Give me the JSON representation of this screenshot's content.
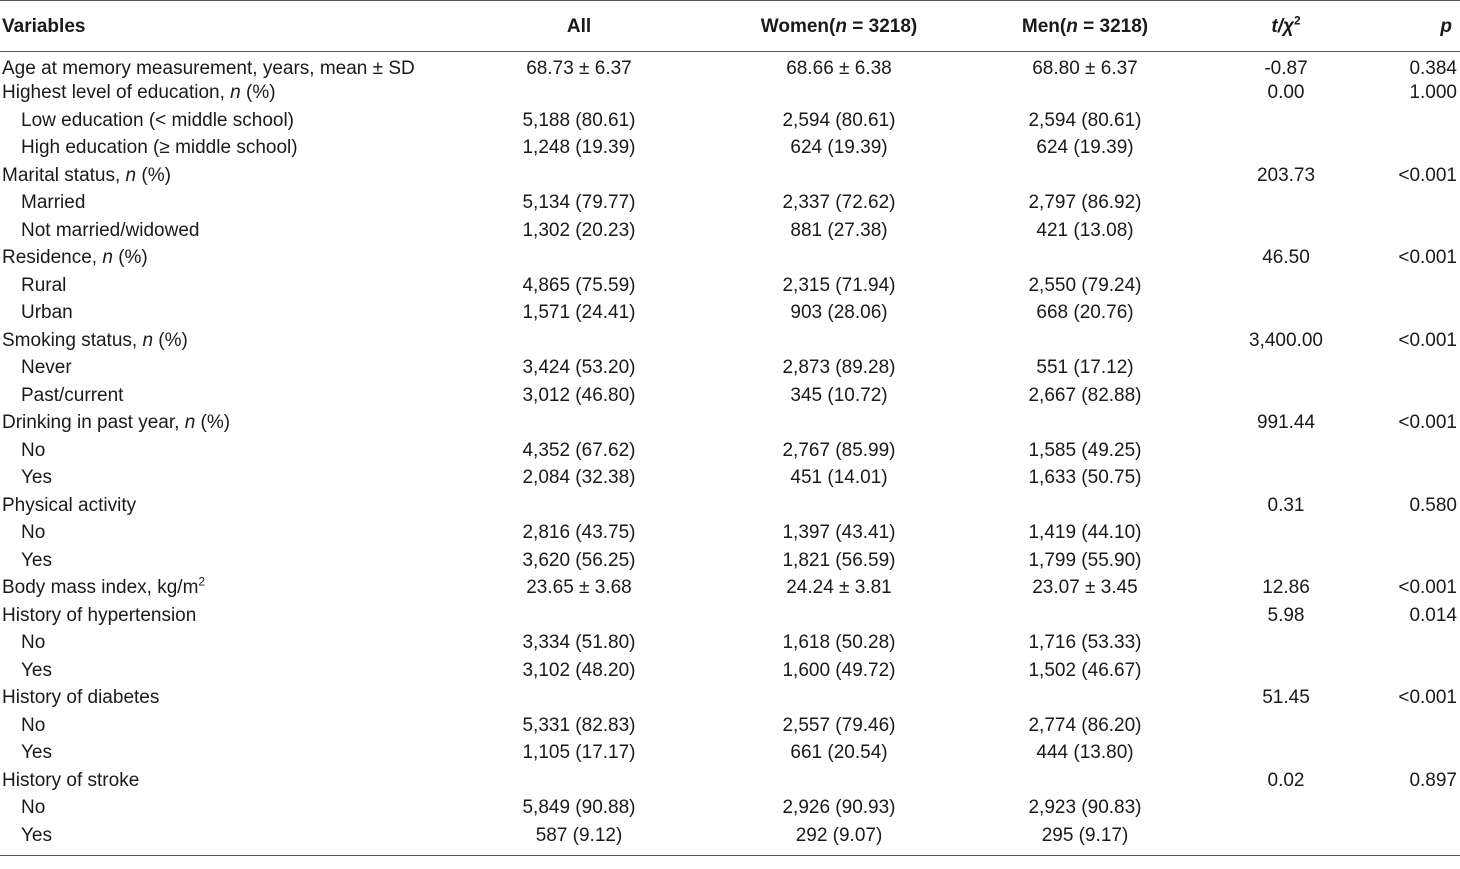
{
  "header": {
    "variables": "Variables",
    "all": "All",
    "women_label": "Women(",
    "women_n": "n",
    "women_count": " = 3218)",
    "men_label": "Men(",
    "men_n": "n",
    "men_count": " = 3218)",
    "t_label": "t",
    "chi_label": "/χ",
    "chi_sup": "2",
    "p_label": "p"
  },
  "rows": [
    {
      "type": "main",
      "label": "Age at memory measurement, years, mean ± SD",
      "all": "68.73 ± 6.37",
      "women": "68.66 ± 6.38",
      "men": "68.80 ± 6.37",
      "t": "-0.87",
      "p": "0.384"
    },
    {
      "type": "main",
      "label": "Highest level of education, ",
      "label_n": "n",
      "label_suffix": " (%)",
      "all": "",
      "women": "",
      "men": "",
      "t": "0.00",
      "p": "1.000"
    },
    {
      "type": "sub",
      "label": "Low education (< middle school)",
      "all": "5,188 (80.61)",
      "women": "2,594 (80.61)",
      "men": "2,594 (80.61)",
      "t": "",
      "p": ""
    },
    {
      "type": "sub",
      "label": "High education (≥ middle school)",
      "all": "1,248 (19.39)",
      "women": "624 (19.39)",
      "men": "624 (19.39)",
      "t": "",
      "p": ""
    },
    {
      "type": "main",
      "label": "Marital status, ",
      "label_n": "n",
      "label_suffix": " (%)",
      "all": "",
      "women": "",
      "men": "",
      "t": "203.73",
      "p": "<0.001"
    },
    {
      "type": "sub",
      "label": "Married",
      "all": "5,134 (79.77)",
      "women": "2,337 (72.62)",
      "men": "2,797 (86.92)",
      "t": "",
      "p": ""
    },
    {
      "type": "sub",
      "label": "Not married/widowed",
      "all": "1,302 (20.23)",
      "women": "881 (27.38)",
      "men": "421 (13.08)",
      "t": "",
      "p": ""
    },
    {
      "type": "main",
      "label": "Residence, ",
      "label_n": "n",
      "label_suffix": " (%)",
      "all": "",
      "women": "",
      "men": "",
      "t": "46.50",
      "p": "<0.001"
    },
    {
      "type": "sub",
      "label": "Rural",
      "all": "4,865 (75.59)",
      "women": "2,315 (71.94)",
      "men": "2,550 (79.24)",
      "t": "",
      "p": ""
    },
    {
      "type": "sub",
      "label": "Urban",
      "all": "1,571 (24.41)",
      "women": "903 (28.06)",
      "men": "668 (20.76)",
      "t": "",
      "p": ""
    },
    {
      "type": "main",
      "label": "Smoking status, ",
      "label_n": "n",
      "label_suffix": " (%)",
      "all": "",
      "women": "",
      "men": "",
      "t": "3,400.00",
      "p": "<0.001"
    },
    {
      "type": "sub",
      "label": "Never",
      "all": "3,424 (53.20)",
      "women": "2,873 (89.28)",
      "men": "551 (17.12)",
      "t": "",
      "p": ""
    },
    {
      "type": "sub",
      "label": "Past/current",
      "all": "3,012 (46.80)",
      "women": "345 (10.72)",
      "men": "2,667 (82.88)",
      "t": "",
      "p": ""
    },
    {
      "type": "main",
      "label": "Drinking in past year, ",
      "label_n": "n",
      "label_suffix": " (%)",
      "all": "",
      "women": "",
      "men": "",
      "t": "991.44",
      "p": "<0.001"
    },
    {
      "type": "sub",
      "label": "No",
      "all": "4,352 (67.62)",
      "women": "2,767 (85.99)",
      "men": "1,585 (49.25)",
      "t": "",
      "p": ""
    },
    {
      "type": "sub",
      "label": "Yes",
      "all": "2,084 (32.38)",
      "women": "451 (14.01)",
      "men": "1,633 (50.75)",
      "t": "",
      "p": ""
    },
    {
      "type": "main",
      "label": "Physical activity",
      "all": "",
      "women": "",
      "men": "",
      "t": "0.31",
      "p": "0.580"
    },
    {
      "type": "sub",
      "label": "No",
      "all": "2,816 (43.75)",
      "women": "1,397 (43.41)",
      "men": "1,419 (44.10)",
      "t": "",
      "p": ""
    },
    {
      "type": "sub",
      "label": "Yes",
      "all": "3,620 (56.25)",
      "women": "1,821 (56.59)",
      "men": "1,799 (55.90)",
      "t": "",
      "p": ""
    },
    {
      "type": "main",
      "label": "Body mass index, kg/m",
      "label_sup": "2",
      "all": "23.65 ± 3.68",
      "women": "24.24 ± 3.81",
      "men": "23.07 ± 3.45",
      "t": "12.86",
      "p": "<0.001"
    },
    {
      "type": "main",
      "label": "History of hypertension",
      "all": "",
      "women": "",
      "men": "",
      "t": "5.98",
      "p": "0.014"
    },
    {
      "type": "sub",
      "label": "No",
      "all": "3,334 (51.80)",
      "women": "1,618 (50.28)",
      "men": "1,716 (53.33)",
      "t": "",
      "p": ""
    },
    {
      "type": "sub",
      "label": "Yes",
      "all": "3,102 (48.20)",
      "women": "1,600 (49.72)",
      "men": "1,502 (46.67)",
      "t": "",
      "p": ""
    },
    {
      "type": "main",
      "label": "History of diabetes",
      "all": "",
      "women": "",
      "men": "",
      "t": "51.45",
      "p": "<0.001"
    },
    {
      "type": "sub",
      "label": "No",
      "all": "5,331 (82.83)",
      "women": "2,557 (79.46)",
      "men": "2,774 (86.20)",
      "t": "",
      "p": ""
    },
    {
      "type": "sub",
      "label": "Yes",
      "all": "1,105 (17.17)",
      "women": "661 (20.54)",
      "men": "444 (13.80)",
      "t": "",
      "p": ""
    },
    {
      "type": "main",
      "label": "History of stroke",
      "all": "",
      "women": "",
      "men": "",
      "t": "0.02",
      "p": "0.897"
    },
    {
      "type": "sub",
      "label": "No",
      "all": "5,849 (90.88)",
      "women": "2,926 (90.93)",
      "men": "2,923 (90.83)",
      "t": "",
      "p": ""
    },
    {
      "type": "sub",
      "label": "Yes",
      "all": "587 (9.12)",
      "women": "292 (9.07)",
      "men": "295 (9.17)",
      "t": "",
      "p": ""
    }
  ]
}
